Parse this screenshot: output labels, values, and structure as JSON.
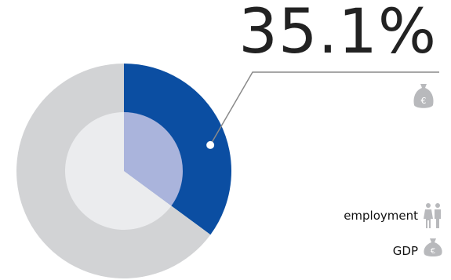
{
  "chart_data": {
    "type": "pie",
    "title": "",
    "highlight_value": "35.1%",
    "series": [
      {
        "name": "GDP",
        "values": [
          35.1,
          64.9
        ],
        "colors": [
          "#0b4ea2",
          "#d2d3d5"
        ]
      },
      {
        "name": "employment",
        "values": [
          35.1,
          64.9
        ],
        "colors": [
          "#aab4dc",
          "#ebecee"
        ]
      }
    ],
    "legend": [
      {
        "label": "employment",
        "icon": "people-icon"
      },
      {
        "label": "GDP",
        "icon": "money-bag-icon"
      }
    ],
    "legend_placement": "bottom-right",
    "callout_icon": "money-bag-icon"
  },
  "colors": {
    "gdp_highlight": "#0b4ea2",
    "gdp_rest": "#d2d3d5",
    "employment_highlight": "#aab4dc",
    "employment_rest": "#ebecee",
    "icon_gray": "#b8b9bc",
    "callout_line": "#8a8a8a",
    "value_text": "#222222"
  }
}
